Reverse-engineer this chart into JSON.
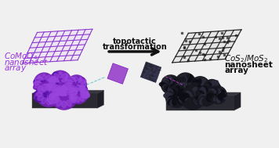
{
  "bg_color": "#f0f0f0",
  "arrow_text_line1": "topotactic",
  "arrow_text_line2": "transformation",
  "arrow_color": "#111111",
  "left_label_color": "#9933dd",
  "right_label_color": "#111111",
  "purple_sheet_color": "#8833cc",
  "dark_sheet_color": "#1a1a1a",
  "flower_purple_light": "#9944dd",
  "flower_purple_mid": "#7722bb",
  "flower_purple_dark": "#5511aa",
  "flower_dark_light": "#2a2a3a",
  "flower_dark_mid": "#181820",
  "flower_dark_dark": "#0d0d15",
  "base_top_color": "#35353f",
  "base_front_color": "#2a2a32",
  "base_side_color": "#1e1e26",
  "teal_dashed": "#44bbbb",
  "pink_dashed": "#cc44cc",
  "purple_inset_color": "#9944cc",
  "dark_inset_color": "#1a1a28"
}
